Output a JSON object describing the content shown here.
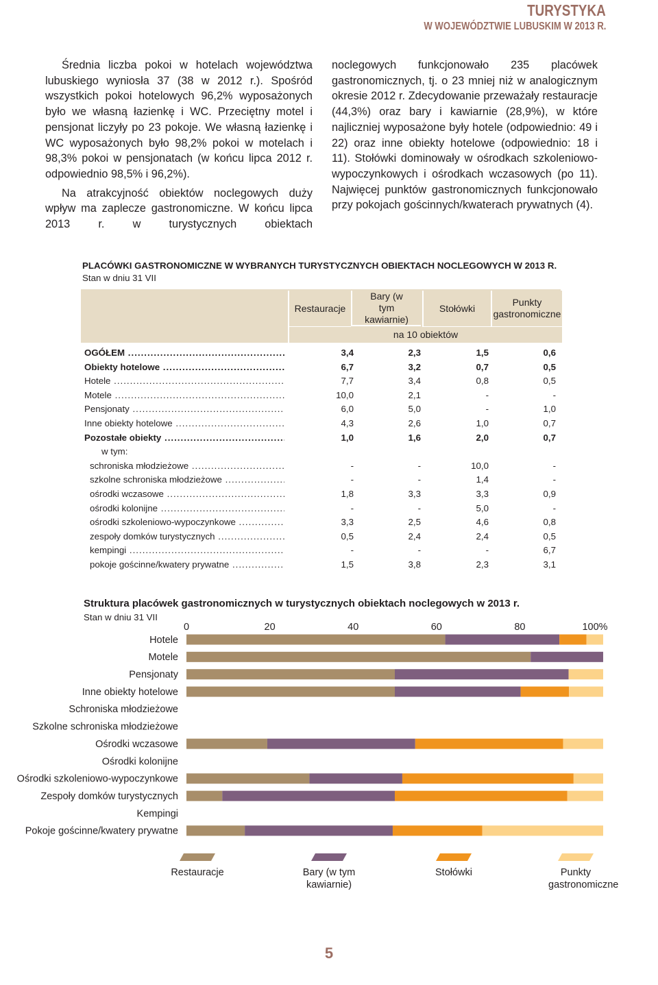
{
  "header": {
    "title": "TURYSTYKA",
    "subtitle": "W WOJEWÓDZTWIE LUBUSKIM W 2013 R."
  },
  "text": {
    "left": [
      "Średnia liczba pokoi w hotelach województwa lubuskiego wyniosła 37 (38 w 2012 r.). Spośród wszystkich pokoi hotelowych 96,2% wyposażonych było we własną łazienkę i WC. Przeciętny motel i pensjonat liczyły po 23 pokoje. We własną łazienkę i WC wyposażonych było 98,2% pokoi w motelach i 98,3% pokoi w pensjonatach (w końcu lipca 2012 r. odpowiednio 98,5% i 96,2%).",
      "Na atrakcyjność obiektów noclegowych duży wpływ ma zaplecze gastronomiczne. W końcu lipca 2013 r. w turystycznych obiektach"
    ],
    "right": [
      "noclegowych funkcjonowało 235 placówek gastronomicznych, tj. o 23 mniej niż w analogicznym okresie 2012 r. Zdecydowanie przeważały restauracje (44,3%) oraz bary i kawiarnie (28,9%), w które najliczniej wyposażone były hotele (odpowiednio: 49 i 22) oraz inne obiekty hotelowe (odpowiednio: 18 i 11). Stołówki dominowały w ośrodkach szkoleniowo-wypoczynkowych i ośrodkach wczasowych (po 11). Najwięcej punktów gastronomicznych funkcjonowało przy pokojach gościnnych/kwaterach prywatnych (4)."
    ]
  },
  "table": {
    "title": "PLACÓWKI GASTRONOMICZNE W WYBRANYCH TURYSTYCZNYCH OBIEKTACH NOCLEGOWYCH W 2013 R.",
    "subtitle": "Stan w dniu 31 VII",
    "columns": [
      "Restauracje",
      "Bary (w tym kawiarnie)",
      "Stołówki",
      "Punkty gastronomiczne"
    ],
    "unit": "na 10 obiektów",
    "rows": [
      [
        "OGÓŁEM",
        "3,4",
        "2,3",
        "1,5",
        "0,6"
      ],
      [
        "Obiekty hotelowe",
        "6,7",
        "3,2",
        "0,7",
        "0,5"
      ],
      [
        "Hotele",
        "7,7",
        "3,4",
        "0,8",
        "0,5"
      ],
      [
        "Motele",
        "10,0",
        "2,1",
        "-",
        "-"
      ],
      [
        "Pensjonaty",
        "6,0",
        "5,0",
        "-",
        "1,0"
      ],
      [
        "Inne obiekty hotelowe",
        "4,3",
        "2,6",
        "1,0",
        "0,7"
      ],
      [
        "Pozostałe obiekty",
        "1,0",
        "1,6",
        "2,0",
        "0,7"
      ],
      [
        "w tym:"
      ],
      [
        "schroniska młodzieżowe",
        "-",
        "-",
        "10,0",
        "-"
      ],
      [
        "szkolne schroniska młodzieżowe",
        "-",
        "-",
        "1,4",
        "-"
      ],
      [
        "ośrodki wczasowe",
        "1,8",
        "3,3",
        "3,3",
        "0,9"
      ],
      [
        "ośrodki kolonijne",
        "-",
        "-",
        "5,0",
        "-"
      ],
      [
        "ośrodki szkoleniowo-wypoczynkowe",
        "3,3",
        "2,5",
        "4,6",
        "0,8"
      ],
      [
        "zespoły domków turystycznych",
        "0,5",
        "2,4",
        "2,4",
        "0,5"
      ],
      [
        "kempingi",
        "-",
        "-",
        "-",
        "6,7"
      ],
      [
        "pokoje gościnne/kwatery prywatne",
        "1,5",
        "3,8",
        "2,3",
        "3,1"
      ]
    ]
  },
  "chart_data": {
    "type": "stacked-bar-horizontal",
    "title": "Struktura placówek gastronomicznych w turystycznych obiektach noclegowych w 2013 r.",
    "subtitle": "Stan w dniu 31 VII",
    "categories": [
      "Hotele",
      "Motele",
      "Pensjonaty",
      "Inne obiekty hotelowe",
      "Schroniska młodzieżowe",
      "Szkolne schroniska młodzieżowe",
      "Ośrodki wczasowe",
      "Ośrodki kolonijne",
      "Ośrodki szkoleniowo-wypoczynkowe",
      "Zespoły domków turystycznych",
      "Kempingi",
      "Pokoje gościnne/kwatery prywatne"
    ],
    "series": [
      {
        "name": "Restauracje",
        "color": "#a88e6a",
        "values": [
          62.1,
          82.6,
          50.0,
          50.0,
          null,
          null,
          19.4,
          null,
          29.5,
          8.6,
          null,
          14.0
        ]
      },
      {
        "name": "Bary (w tym kawiarnie)",
        "color": "#7e5f7e",
        "values": [
          27.4,
          17.4,
          41.7,
          30.2,
          null,
          null,
          35.5,
          null,
          22.3,
          41.4,
          null,
          35.5
        ]
      },
      {
        "name": "Stołówki",
        "color": "#f0941e",
        "values": [
          6.5,
          0,
          0,
          11.6,
          null,
          null,
          35.5,
          null,
          41.1,
          41.4,
          null,
          21.5
        ]
      },
      {
        "name": "Punkty gastronomiczne",
        "color": "#fcd38a",
        "values": [
          4.0,
          0,
          8.3,
          8.2,
          null,
          null,
          9.6,
          null,
          7.1,
          8.6,
          null,
          29.0
        ]
      }
    ],
    "xlim": [
      0,
      100
    ],
    "xticks": [
      0,
      20,
      40,
      60,
      80,
      {
        "value": 100,
        "label": "100%"
      }
    ],
    "grid": false
  },
  "footer": {
    "page": "5"
  }
}
